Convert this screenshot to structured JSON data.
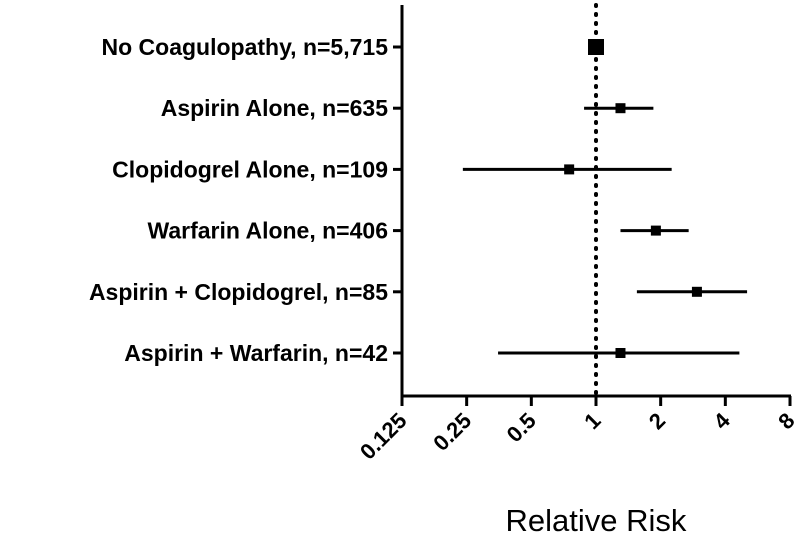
{
  "chart_data": {
    "type": "forest",
    "xlabel": "Relative Risk",
    "x_scale": "log2",
    "xlim": [
      0.125,
      8
    ],
    "x_ticks": [
      "0.125",
      "0.25",
      "0.5",
      "1",
      "2",
      "4",
      "8"
    ],
    "reference_line": {
      "value": 1,
      "style": "dotted"
    },
    "grid": false,
    "rows": [
      {
        "label": "No Coagulopathy, n=5,715",
        "estimate": 1.0,
        "ci": [
          1.0,
          1.0
        ]
      },
      {
        "label": "Aspirin Alone, n=635",
        "estimate": 1.3,
        "ci": [
          0.88,
          1.85
        ]
      },
      {
        "label": "Clopidogrel Alone, n=109",
        "estimate": 0.75,
        "ci": [
          0.24,
          2.25
        ]
      },
      {
        "label": "Warfarin Alone, n=406",
        "estimate": 1.9,
        "ci": [
          1.3,
          2.7
        ]
      },
      {
        "label": "Aspirin + Clopidogrel, n=85",
        "estimate": 2.95,
        "ci": [
          1.55,
          5.05
        ]
      },
      {
        "label": "Aspirin + Warfarin, n=42",
        "estimate": 1.3,
        "ci": [
          0.35,
          4.65
        ]
      }
    ],
    "colors": {
      "marks": "#000000",
      "background": "#ffffff"
    }
  }
}
